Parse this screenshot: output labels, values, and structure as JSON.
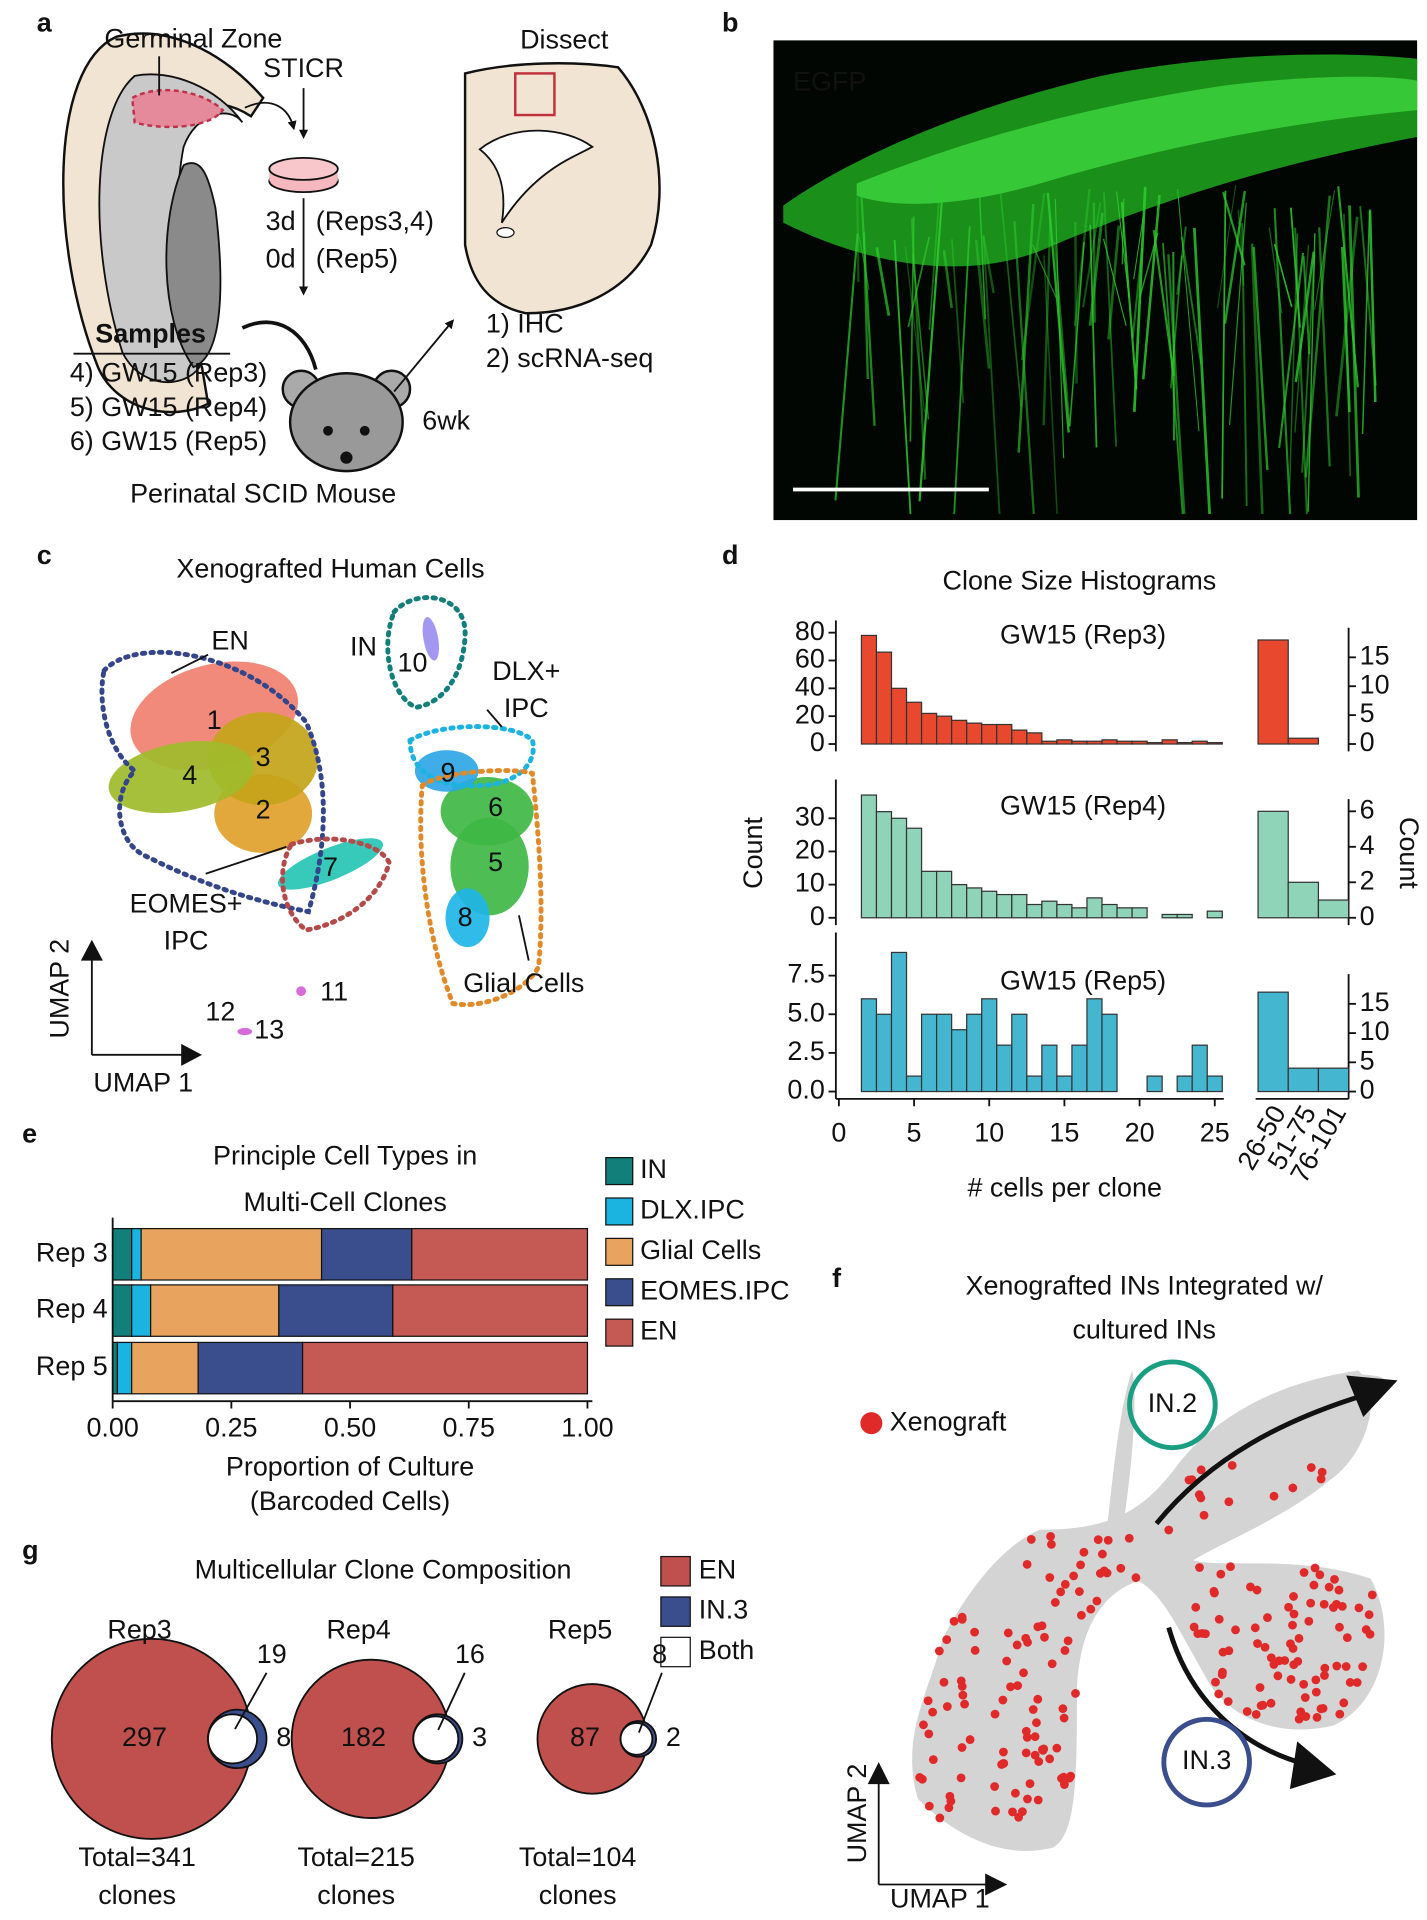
{
  "panel_labels": [
    "a",
    "b",
    "c",
    "d",
    "e",
    "f",
    "g"
  ],
  "panel_a": {
    "germinal_zone": "Germinal Zone",
    "sticr": "STICR",
    "dissect": "Dissect",
    "timing": [
      "3d",
      "(Reps3,4)",
      "0d",
      "(Rep5)"
    ],
    "samples_title": "Samples",
    "samples": [
      "4) GW15 (Rep3)",
      "5) GW15 (Rep4)",
      "6) GW15 (Rep5)"
    ],
    "mouse": "Perinatal SCID Mouse",
    "duration": "6wk",
    "assays": [
      "1) IHC",
      "2) scRNA-seq"
    ]
  },
  "panel_b": {
    "label": "EGFP"
  },
  "panel_c": {
    "title": "Xenografted Human Cells",
    "groups": [
      "EN",
      "IN",
      "DLX+",
      "IPC",
      "EOMES+",
      "IPC",
      "Glial Cells"
    ],
    "clusters": [
      "1",
      "2",
      "3",
      "4",
      "5",
      "6",
      "7",
      "8",
      "9",
      "10",
      "11",
      "12",
      "13"
    ],
    "axes": [
      "UMAP 2",
      "UMAP 1"
    ]
  },
  "chart_data": [
    {
      "type": "histogram",
      "title": "Clone Size Histograms",
      "subtitle": "GW15 (Rep3)",
      "color": "#e8492e",
      "bins": [
        1.5,
        2.5,
        3.5,
        4.5,
        5.5,
        6.5,
        7.5,
        8.5,
        9.5,
        10.5,
        11.5,
        12.5,
        13.5,
        14.5,
        15.5,
        16.5,
        17.5,
        18.5,
        19.5,
        20.5,
        21.5,
        22.5,
        23.5,
        24.5,
        25.5
      ],
      "values": [
        78,
        66,
        40,
        30,
        22,
        20,
        17,
        15,
        14,
        14,
        10,
        8,
        2,
        3,
        2,
        2,
        3,
        2,
        2,
        1,
        3,
        1,
        2,
        1
      ],
      "xlim": [
        -0.2,
        25.6
      ],
      "ylim": [
        0,
        80
      ],
      "yticks": [
        0,
        20,
        40,
        60,
        80
      ]
    },
    {
      "type": "bar",
      "yaxis": "right",
      "color": "#e8492e",
      "categories": [
        null,
        null,
        null
      ],
      "values": [
        18,
        1,
        0
      ],
      "ylim": [
        0,
        18
      ],
      "yticks": [
        0,
        5,
        10,
        15
      ]
    },
    {
      "type": "histogram",
      "subtitle": "GW15 (Rep4)",
      "ylabel": "Count",
      "color": "#8fd3b8",
      "bins": [
        1.5,
        2.5,
        3.5,
        4.5,
        5.5,
        6.5,
        7.5,
        8.5,
        9.5,
        10.5,
        11.5,
        12.5,
        13.5,
        14.5,
        15.5,
        16.5,
        17.5,
        18.5,
        19.5,
        20.5,
        21.5,
        22.5,
        23.5,
        24.5,
        25.5
      ],
      "values": [
        37,
        32,
        30,
        27,
        14,
        14,
        10,
        9,
        8,
        7,
        7,
        4,
        5,
        4,
        3,
        6,
        4,
        3,
        3,
        0,
        1,
        1,
        0,
        2
      ],
      "xlim": [
        -0.2,
        25.6
      ],
      "ylim": [
        0,
        38
      ],
      "yticks": [
        0,
        10,
        20,
        30
      ]
    },
    {
      "type": "bar",
      "yaxis": "right",
      "ylabel": "Count",
      "color": "#8fd3b8",
      "categories": [
        null,
        null,
        null
      ],
      "values": [
        6,
        2,
        1
      ],
      "ylim": [
        0,
        6
      ],
      "yticks": [
        0,
        2,
        4,
        6
      ]
    },
    {
      "type": "histogram",
      "subtitle": "GW15 (Rep5)",
      "xlabel": "# cells per clone",
      "color": "#44b6cf",
      "bins": [
        1.5,
        2.5,
        3.5,
        4.5,
        5.5,
        6.5,
        7.5,
        8.5,
        9.5,
        10.5,
        11.5,
        12.5,
        13.5,
        14.5,
        15.5,
        16.5,
        17.5,
        18.5,
        19.5,
        20.5,
        21.5,
        22.5,
        23.5,
        24.5,
        25.5
      ],
      "values": [
        6,
        5,
        9,
        1,
        5,
        5,
        4,
        5,
        6,
        3,
        5,
        1,
        3,
        1,
        3,
        6,
        5,
        0,
        0,
        1,
        0,
        1,
        3,
        1
      ],
      "xlim": [
        -0.2,
        25.6
      ],
      "xticks": [
        0,
        5,
        10,
        15,
        20,
        25
      ],
      "ylim": [
        0,
        9.5
      ],
      "yticks": [
        {
          "value": 0,
          "label": "0.0"
        },
        2.5,
        {
          "value": 5,
          "label": "5.0"
        },
        7.5
      ]
    },
    {
      "type": "bar",
      "yaxis": "right",
      "color": "#44b6cf",
      "categories": [
        "26-50",
        "51-75",
        "76-101"
      ],
      "values": [
        17,
        4,
        4
      ],
      "ylim": [
        0,
        18
      ],
      "yticks": [
        0,
        5,
        10,
        15
      ]
    },
    {
      "type": "stacked_barh",
      "title": [
        "Principle Cell Types in",
        "Multi-Cell Clones"
      ],
      "xlabel": [
        "Proportion of Culture",
        "(Barcoded Cells)"
      ],
      "categories": [
        "Rep 3",
        "Rep 4",
        "Rep 5"
      ],
      "series": [
        {
          "name": "IN",
          "color": "#137f7a",
          "values": [
            0.04,
            0.04,
            0.01
          ]
        },
        {
          "name": "DLX.IPC",
          "color": "#1bb3e0",
          "values": [
            0.02,
            0.04,
            0.03
          ]
        },
        {
          "name": "Glial Cells",
          "color": "#e8a45e",
          "values": [
            0.38,
            0.27,
            0.14
          ]
        },
        {
          "name": "EOMES.IPC",
          "color": "#3a4e8e",
          "values": [
            0.19,
            0.24,
            0.22
          ]
        },
        {
          "name": "EN",
          "color": "#c55a55",
          "values": [
            0.37,
            0.41,
            0.6
          ]
        }
      ],
      "xlim": [
        0,
        1
      ],
      "xticks": [
        {
          "value": 0,
          "label": "0.00"
        },
        0.25,
        {
          "value": 0.5,
          "label": "0.50"
        },
        0.75,
        {
          "value": 1,
          "label": "1.00"
        }
      ]
    },
    {
      "type": "venn",
      "title": "Multicellular Clone Composition",
      "categories": [
        "Rep3",
        "Rep4",
        "Rep5"
      ],
      "series": [
        {
          "name": "EN",
          "color": "#c0504d",
          "values": [
            297,
            182,
            87
          ]
        },
        {
          "name": "IN.3",
          "color": "#3a4e8e",
          "values": [
            8,
            3,
            2
          ]
        },
        {
          "name": "Both",
          "color": "#ffffff",
          "values": [
            19,
            16,
            8
          ]
        }
      ],
      "totals": [
        "Total=341",
        "Total=215",
        "Total=104"
      ],
      "total_unit": "clones"
    }
  ],
  "panel_f": {
    "title_lines": [
      "Xenografted INs Integrated w/",
      "cultured INs"
    ],
    "legend": "Xenograft",
    "states": [
      "IN.2",
      "IN.3"
    ],
    "axes": [
      "UMAP 2",
      "UMAP 1"
    ]
  }
}
